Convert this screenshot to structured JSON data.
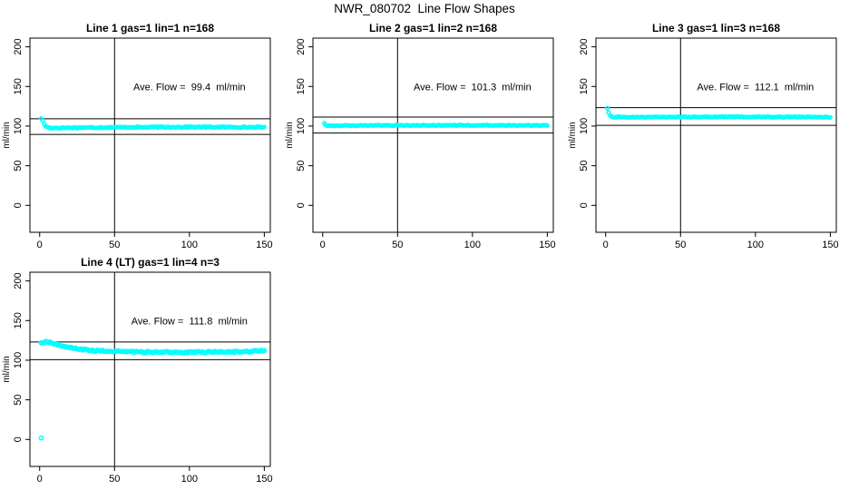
{
  "figure": {
    "title": "NWR_080702  Line Flow Shapes"
  },
  "colors": {
    "marker": "#00ffff",
    "line": "#000000",
    "background": "#ffffff"
  },
  "chart_data": [
    {
      "type": "scatter",
      "title": "Line 1 gas=1 lin=1 n=168",
      "annotation": "Ave. Flow =  99.4  ml/min",
      "annotation_xy": [
        100,
        150
      ],
      "ave_flow_ml_min": 99.4,
      "ylabel": "ml/min",
      "xlabel": "",
      "x_ticks": [
        0,
        50,
        100,
        150
      ],
      "y_ticks": [
        0,
        50,
        100,
        150,
        200
      ],
      "xlim": [
        -6.5,
        154
      ],
      "ylim": [
        -34,
        211
      ],
      "grid": false,
      "vline_x": 50,
      "hlines": [
        109.3,
        89.5
      ],
      "x_data_range": [
        1,
        150
      ],
      "n_points": 150,
      "marker": "open-circle",
      "marker_color": "#00ffff",
      "marker_r": 1.8,
      "profile_points": [
        [
          1,
          110
        ],
        [
          2,
          106.5
        ],
        [
          3,
          102.5
        ],
        [
          4,
          100
        ],
        [
          5,
          98.5
        ],
        [
          7,
          97.6
        ],
        [
          12,
          97.6
        ],
        [
          25,
          98
        ],
        [
          60,
          98.5
        ],
        [
          100,
          98.8
        ],
        [
          150,
          98.5
        ]
      ],
      "noise_amplitude": 0.7,
      "outliers": []
    },
    {
      "type": "scatter",
      "title": "Line 2 gas=1 lin=2 n=168",
      "annotation": "Ave. Flow =  101.3  ml/min",
      "annotation_xy": [
        100,
        150
      ],
      "ave_flow_ml_min": 101.3,
      "ylabel": "ml/min",
      "xlabel": "",
      "x_ticks": [
        0,
        50,
        100,
        150
      ],
      "y_ticks": [
        0,
        50,
        100,
        150,
        200
      ],
      "xlim": [
        -6.5,
        154
      ],
      "ylim": [
        -34,
        211
      ],
      "grid": false,
      "vline_x": 50,
      "hlines": [
        111.4,
        91.2
      ],
      "x_data_range": [
        1,
        150
      ],
      "n_points": 150,
      "marker": "open-circle",
      "marker_color": "#00ffff",
      "marker_r": 1.8,
      "profile_points": [
        [
          1,
          104
        ],
        [
          2,
          101.5
        ],
        [
          3,
          100.8
        ],
        [
          6,
          100.5
        ],
        [
          30,
          100.7
        ],
        [
          80,
          101
        ],
        [
          150,
          100.8
        ]
      ],
      "noise_amplitude": 0.5,
      "outliers": []
    },
    {
      "type": "scatter",
      "title": "Line 3 gas=1 lin=3 n=168",
      "annotation": "Ave. Flow =  112.1  ml/min",
      "annotation_xy": [
        100,
        150
      ],
      "ave_flow_ml_min": 112.1,
      "ylabel": "ml/min",
      "xlabel": "",
      "x_ticks": [
        0,
        50,
        100,
        150
      ],
      "y_ticks": [
        0,
        50,
        100,
        150,
        200
      ],
      "xlim": [
        -6.5,
        154
      ],
      "ylim": [
        -34,
        211
      ],
      "grid": false,
      "vline_x": 50,
      "hlines": [
        123.3,
        100.9
      ],
      "x_data_range": [
        1,
        150
      ],
      "n_points": 150,
      "marker": "open-circle",
      "marker_color": "#00ffff",
      "marker_r": 1.8,
      "profile_points": [
        [
          1,
          122
        ],
        [
          2,
          116.5
        ],
        [
          3,
          113.2
        ],
        [
          4,
          112
        ],
        [
          6,
          111.4
        ],
        [
          30,
          111.3
        ],
        [
          80,
          111.6
        ],
        [
          150,
          111.4
        ]
      ],
      "noise_amplitude": 0.5,
      "outliers": []
    },
    {
      "type": "scatter",
      "title": "Line 4 (LT) gas=1 lin=4 n=3",
      "annotation": "Ave. Flow =  111.8  ml/min",
      "annotation_xy": [
        100,
        150
      ],
      "ave_flow_ml_min": 111.8,
      "ylabel": "ml/min",
      "xlabel": "",
      "x_ticks": [
        0,
        50,
        100,
        150
      ],
      "y_ticks": [
        0,
        50,
        100,
        150,
        200
      ],
      "xlim": [
        -6.5,
        154
      ],
      "ylim": [
        -34,
        211
      ],
      "grid": false,
      "vline_x": 50,
      "hlines": [
        123.0,
        100.6
      ],
      "x_data_range": [
        1,
        150
      ],
      "n_points": 150,
      "marker": "open-circle",
      "marker_color": "#00ffff",
      "marker_r": 2.1,
      "profile_points": [
        [
          1,
          121
        ],
        [
          2,
          122
        ],
        [
          4,
          123.2
        ],
        [
          6,
          122.8
        ],
        [
          9,
          121
        ],
        [
          14,
          118.5
        ],
        [
          19,
          116.2
        ],
        [
          25,
          114.2
        ],
        [
          32,
          112.8
        ],
        [
          42,
          111.6
        ],
        [
          55,
          110.8
        ],
        [
          75,
          110.1
        ],
        [
          95,
          110
        ],
        [
          115,
          110.4
        ],
        [
          135,
          110.6
        ],
        [
          150,
          111.8
        ]
      ],
      "noise_amplitude": 1.0,
      "outliers": [
        [
          1,
          2
        ]
      ]
    }
  ]
}
